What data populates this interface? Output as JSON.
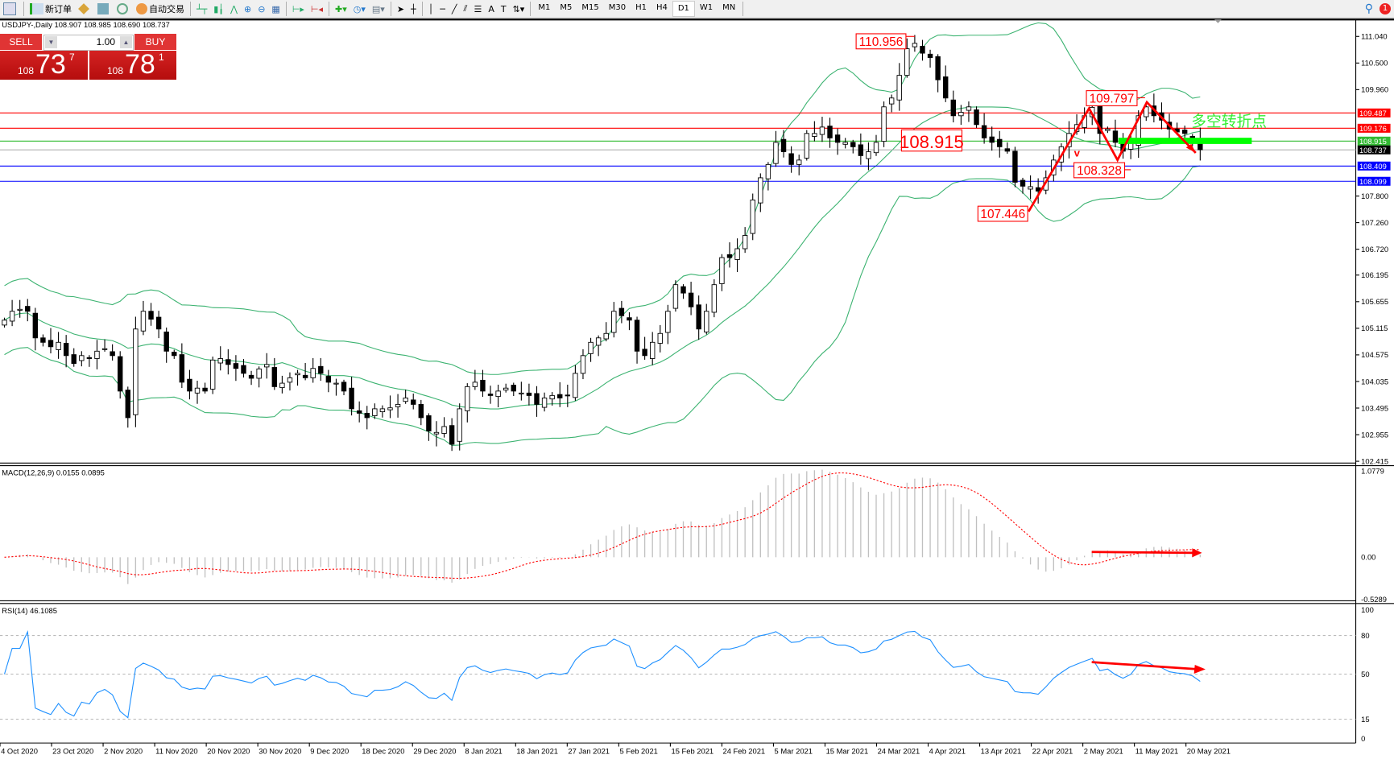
{
  "toolbar": {
    "new_order_label": "新订单",
    "auto_trade_label": "自动交易",
    "timeframes": [
      "M1",
      "M5",
      "M15",
      "M30",
      "H1",
      "H4",
      "D1",
      "W1",
      "MN"
    ],
    "active_timeframe": "D1",
    "notification_count": "1"
  },
  "chart_header": "USDJPY-,Daily  108.907 108.985 108.690 108.737",
  "trade_panel": {
    "sell_label": "SELL",
    "buy_label": "BUY",
    "lot": "1.00",
    "sell_prefix": "108",
    "sell_big": "73",
    "sell_pip": "7",
    "buy_prefix": "108",
    "buy_big": "78",
    "buy_pip": "1"
  },
  "colors": {
    "bull": "#ffffff",
    "bear": "#000000",
    "bands": "#3cb371",
    "red": "#ff0000",
    "green": "#00ff00",
    "blue": "#0000ff",
    "rsi": "#1e90ff",
    "macd_hist": "#c0c0c0"
  },
  "chart_data": {
    "type": "candlestick",
    "symbol": "USDJPY-",
    "period": "Daily",
    "price_axis": [
      "111.040",
      "110.500",
      "109.960",
      "107.800",
      "107.260",
      "106.720",
      "106.195",
      "105.655",
      "105.115",
      "104.575",
      "104.035",
      "103.495",
      "102.955",
      "102.415"
    ],
    "ylim": [
      102.415,
      111.04
    ],
    "date_labels": [
      "4 Oct 2020",
      "23 Oct 2020",
      "2 Nov 2020",
      "11 Nov 2020",
      "20 Nov 2020",
      "30 Nov 2020",
      "9 Dec 2020",
      "18 Dec 2020",
      "29 Dec 2020",
      "8 Jan 2021",
      "18 Jan 2021",
      "27 Jan 2021",
      "5 Feb 2021",
      "15 Feb 2021",
      "24 Feb 2021",
      "5 Mar 2021",
      "15 Mar 2021",
      "24 Mar 2021",
      "4 Apr 2021",
      "13 Apr 2021",
      "22 Apr 2021",
      "2 May 2021",
      "11 May 2021",
      "20 May 2021"
    ],
    "closes": [
      105.28,
      105.46,
      105.5,
      105.46,
      104.92,
      104.83,
      104.74,
      104.83,
      104.56,
      104.4,
      104.56,
      104.5,
      104.65,
      104.7,
      104.56,
      103.84,
      103.3,
      105.1,
      105.46,
      105.3,
      105.1,
      104.65,
      104.56,
      104.02,
      103.84,
      103.9,
      103.84,
      104.47,
      104.5,
      104.38,
      104.3,
      104.2,
      104.1,
      104.29,
      104.38,
      103.93,
      104.0,
      104.11,
      104.2,
      104.11,
      104.3,
      104.2,
      104.02,
      104.0,
      103.84,
      103.48,
      103.39,
      103.3,
      103.48,
      103.48,
      103.5,
      103.57,
      103.7,
      103.57,
      103.3,
      103.03,
      103.0,
      103.12,
      102.76,
      103.48,
      103.93,
      104.02,
      103.84,
      103.75,
      103.84,
      103.9,
      103.84,
      103.8,
      103.75,
      103.57,
      103.7,
      103.75,
      103.7,
      103.75,
      104.2,
      104.56,
      104.83,
      104.92,
      105.01,
      105.46,
      105.37,
      105.28,
      104.65,
      104.56,
      104.83,
      105.01,
      105.46,
      106.0,
      105.83,
      105.55,
      105.1,
      105.46,
      106.0,
      106.55,
      106.55,
      106.73,
      107.0,
      107.72,
      108.17,
      108.44,
      108.89,
      108.7,
      108.44,
      108.53,
      109.07,
      109.07,
      109.2,
      108.98,
      108.89,
      108.89,
      108.8,
      108.62,
      108.7,
      108.89,
      109.61,
      109.79,
      110.25,
      110.79,
      110.9,
      110.7,
      110.61,
      110.16,
      109.79,
      109.43,
      109.5,
      109.61,
      109.25,
      108.98,
      108.89,
      108.8,
      108.71,
      108.08,
      108.0,
      107.99,
      107.9,
      108.17,
      108.53,
      108.8,
      109.07,
      109.25,
      109.43,
      109.6,
      109.07,
      109.16,
      108.89,
      108.71,
      108.89,
      109.43,
      109.61,
      109.43,
      109.34,
      109.16,
      109.1,
      109.07,
      108.98,
      108.74
    ],
    "hlines": [
      {
        "price": "109.487",
        "color": "#ff0000"
      },
      {
        "price": "109.176",
        "color": "#ff0000"
      },
      {
        "price": "108.915",
        "color": "#33bb33"
      },
      {
        "price": "108.737",
        "color": "#000000"
      },
      {
        "price": "108.409",
        "color": "#0000ff"
      },
      {
        "price": "108.099",
        "color": "#0000ff"
      }
    ],
    "annotations": [
      "110.956",
      "109.797",
      "108.915",
      "108.328",
      "107.446"
    ],
    "annotation_text": "多空转折点",
    "macd": {
      "label": "MACD(12,26,9) 0.0155 0.0895",
      "axis": [
        "1.0779",
        "0.00",
        "-0.5289"
      ],
      "ylim": [
        -0.5289,
        1.0779
      ]
    },
    "rsi": {
      "label": "RSI(14) 46.1085",
      "axis": [
        "100",
        "80",
        "50",
        "15",
        "0"
      ],
      "levels": [
        80,
        50,
        15
      ]
    }
  }
}
